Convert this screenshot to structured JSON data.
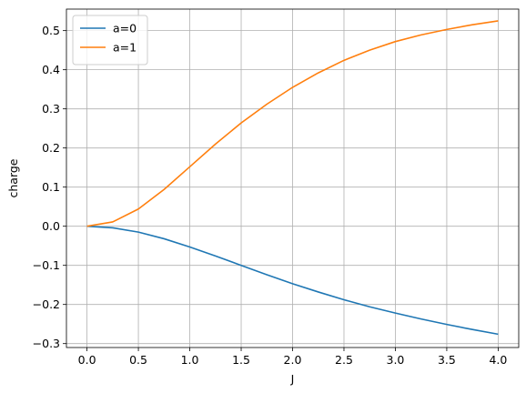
{
  "chart_data": {
    "type": "line",
    "title": "",
    "xlabel": "J",
    "ylabel": "charge",
    "xlim": [
      -0.2,
      4.2
    ],
    "ylim": [
      -0.31,
      0.555
    ],
    "grid": true,
    "legend_position": "top-left",
    "xticks": [
      0.0,
      0.5,
      1.0,
      1.5,
      2.0,
      2.5,
      3.0,
      3.5,
      4.0
    ],
    "xtick_labels": [
      "0.0",
      "0.5",
      "1.0",
      "1.5",
      "2.0",
      "2.5",
      "3.0",
      "3.5",
      "4.0"
    ],
    "yticks": [
      -0.3,
      -0.2,
      -0.1,
      0.0,
      0.1,
      0.2,
      0.3,
      0.4,
      0.5
    ],
    "ytick_labels": [
      "−0.3",
      "−0.2",
      "−0.1",
      "0.0",
      "0.1",
      "0.2",
      "0.3",
      "0.4",
      "0.5"
    ],
    "series": [
      {
        "name": "a=0",
        "color": "#1f77b4",
        "x": [
          0.0,
          0.25,
          0.5,
          0.75,
          1.0,
          1.25,
          1.5,
          1.75,
          2.0,
          2.25,
          2.5,
          2.75,
          3.0,
          3.25,
          3.5,
          3.75,
          4.0
        ],
        "y": [
          0.0,
          -0.004,
          -0.015,
          -0.032,
          -0.053,
          -0.076,
          -0.1,
          -0.124,
          -0.147,
          -0.168,
          -0.188,
          -0.206,
          -0.222,
          -0.237,
          -0.251,
          -0.264,
          -0.276
        ]
      },
      {
        "name": "a=1",
        "color": "#ff7f0e",
        "x": [
          0.0,
          0.25,
          0.5,
          0.75,
          1.0,
          1.25,
          1.5,
          1.75,
          2.0,
          2.25,
          2.5,
          2.75,
          3.0,
          3.25,
          3.5,
          3.75,
          4.0
        ],
        "y": [
          0.0,
          0.011,
          0.044,
          0.094,
          0.152,
          0.21,
          0.264,
          0.312,
          0.355,
          0.392,
          0.424,
          0.45,
          0.472,
          0.489,
          0.503,
          0.515,
          0.525
        ]
      }
    ]
  }
}
